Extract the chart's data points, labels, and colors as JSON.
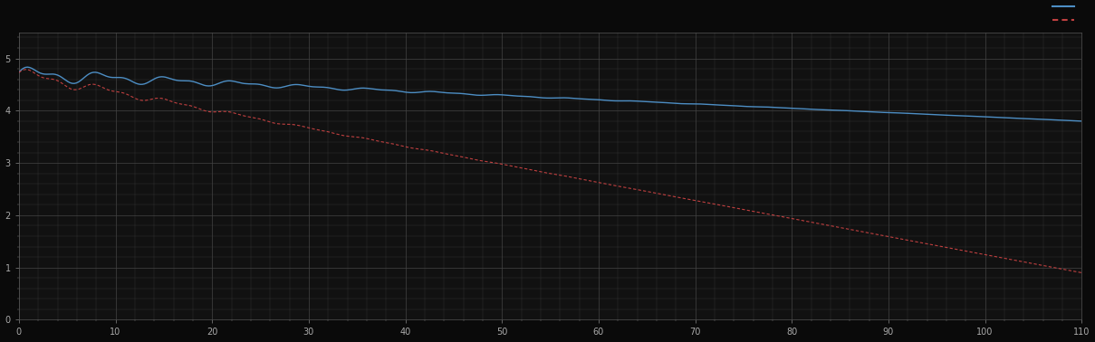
{
  "background_color": "#0a0a0a",
  "plot_bg_color": "#111111",
  "grid_color": "#444444",
  "line1_color": "#4d8ec4",
  "line2_color": "#c04040",
  "xlim": [
    0,
    110
  ],
  "ylim": [
    0,
    5.5
  ],
  "ytick_major": [
    0,
    1,
    2,
    3,
    4,
    5
  ],
  "xtick_major": [
    0,
    10,
    20,
    30,
    40,
    50,
    60,
    70,
    80,
    90,
    100,
    110
  ],
  "figsize": [
    12.09,
    3.78
  ],
  "dpi": 100
}
